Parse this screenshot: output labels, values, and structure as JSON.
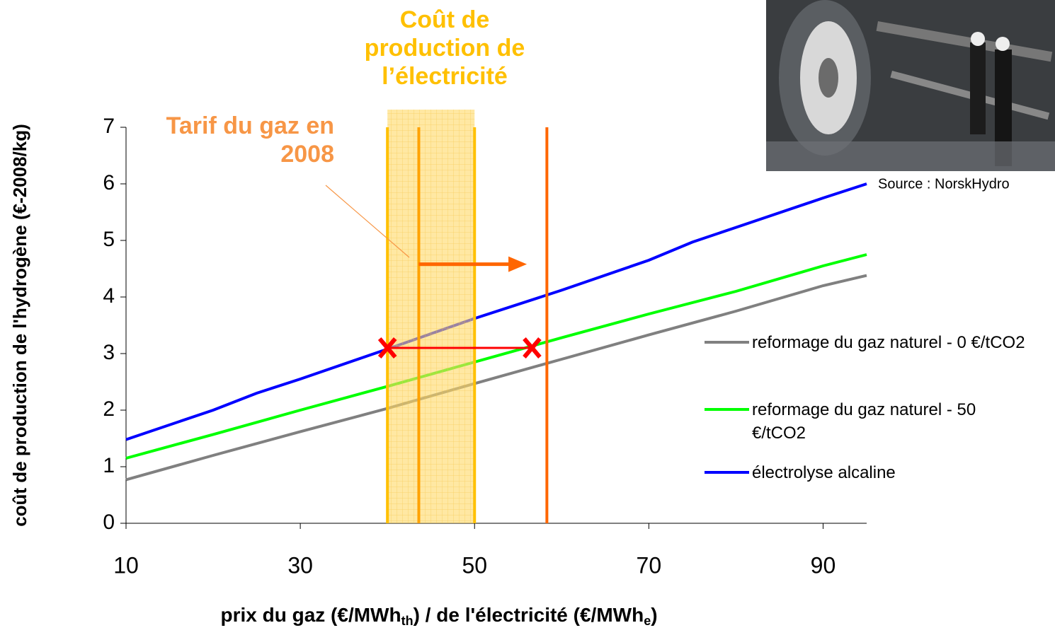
{
  "chart_data": {
    "type": "line",
    "xlabel": [
      "prix du gaz (€/MWh",
      "th",
      ") / de l'électricité (€/MWh",
      "e",
      ")"
    ],
    "ylabel": "coût de production de l'hydrogène (€-2008/kg)",
    "xlim": [
      10,
      95
    ],
    "xticks": [
      10,
      30,
      50,
      70,
      90
    ],
    "ylim": [
      0,
      7
    ],
    "yticks": [
      0,
      1,
      2,
      3,
      4,
      5,
      6,
      7
    ],
    "grid": false,
    "series": [
      {
        "name": "reformage du gaz naturel - 0 €/tCO2",
        "color": "#808080",
        "x": [
          10,
          20,
          30,
          40,
          50,
          60,
          70,
          80,
          90,
          95
        ],
        "values": [
          0.77,
          1.2,
          1.62,
          2.03,
          2.47,
          2.9,
          3.33,
          3.75,
          4.2,
          4.38
        ]
      },
      {
        "name": "reformage du gaz naturel - 50 €/tCO2",
        "color": "#00ff00",
        "x": [
          10,
          20,
          30,
          40,
          50,
          60,
          70,
          80,
          90,
          95
        ],
        "values": [
          1.15,
          1.57,
          2.0,
          2.42,
          2.85,
          3.28,
          3.7,
          4.1,
          4.55,
          4.75
        ]
      },
      {
        "name": "électrolyse alcaline",
        "color": "#0000ff",
        "x": [
          10,
          20,
          25,
          30,
          40,
          50,
          60,
          70,
          75,
          80,
          90,
          95
        ],
        "values": [
          1.48,
          2.0,
          2.3,
          2.55,
          3.08,
          3.62,
          4.12,
          4.65,
          4.97,
          5.23,
          5.75,
          6.0
        ]
      }
    ],
    "band": {
      "from": 40,
      "to": 50,
      "color": "#ffd966",
      "label": "Coût de production de l’électricité",
      "label_color": "#ffc000"
    },
    "vlines": [
      {
        "x": 40,
        "color": "#ffc000"
      },
      {
        "x": 43.6,
        "color": "#ffa200"
      },
      {
        "x": 50,
        "color": "#ffc000"
      },
      {
        "x": 58.3,
        "color": "#ff6600"
      }
    ],
    "arrow": {
      "from": 43.6,
      "to": 56,
      "y": 4.58,
      "color": "#ff6600"
    },
    "gas_annotation": {
      "label": "Tarif du gaz en 2008",
      "color": "#f79646"
    },
    "cross_markers": {
      "x": [
        40,
        56.6
      ],
      "y": [
        3.1,
        3.1
      ],
      "color": "#ff0000"
    },
    "image_caption": "Source : NorskHydro"
  }
}
